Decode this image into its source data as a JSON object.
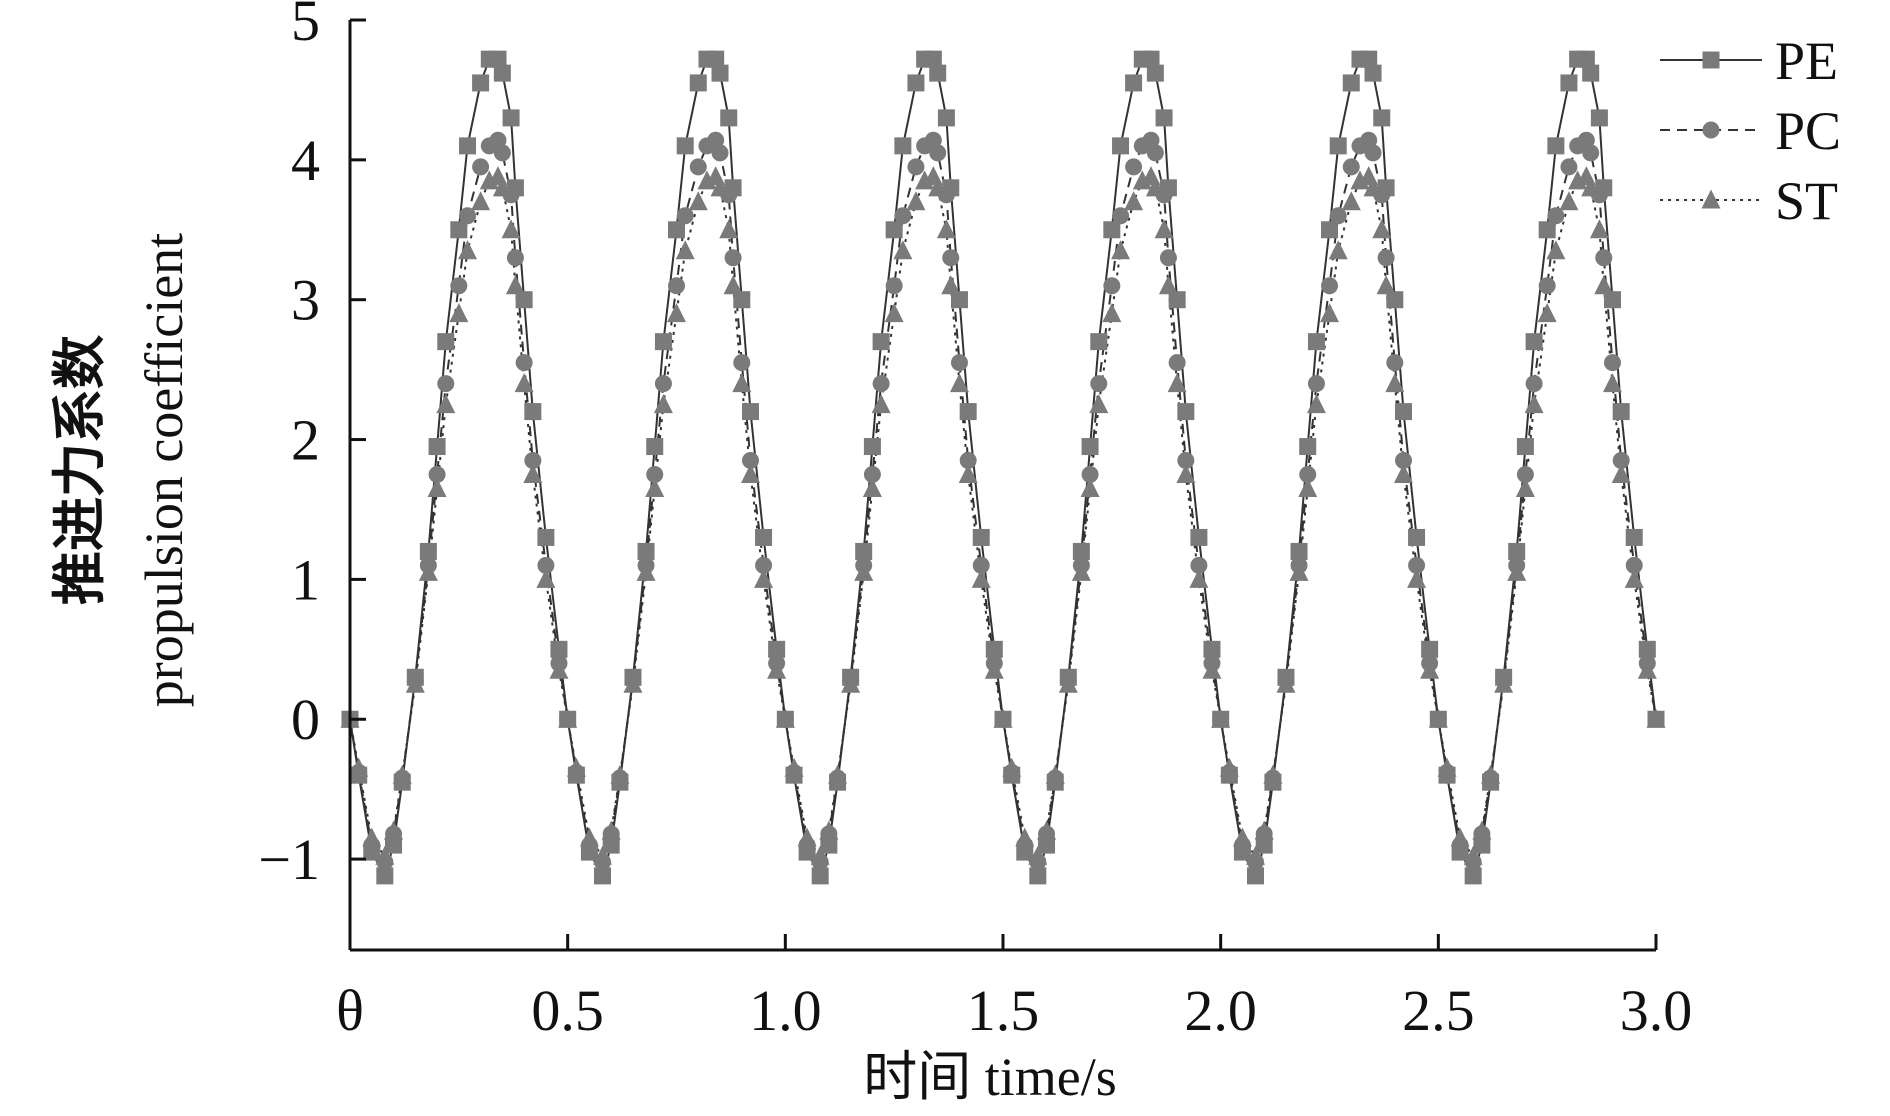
{
  "chart_data": {
    "type": "line",
    "title": "",
    "xlabel": "时间 time/s",
    "ylabel_line1": "推进力系数",
    "ylabel_line2": "propulsion coefficient",
    "xlim": [
      0,
      3.0
    ],
    "ylim": [
      -1.65,
      5
    ],
    "x_ticks": [
      0,
      0.5,
      1.0,
      1.5,
      2.0,
      2.5,
      3.0
    ],
    "x_tick_labels": [
      "θ",
      "0.5",
      "1.0",
      "1.5",
      "2.0",
      "2.5",
      "3.0"
    ],
    "y_ticks": [
      -1,
      0,
      1,
      2,
      3,
      4,
      5
    ],
    "y_tick_labels": [
      "−1",
      "0",
      "1",
      "2",
      "3",
      "4",
      "5"
    ],
    "grid": false,
    "legend_position": "top-right",
    "period": 0.5,
    "series": [
      {
        "name": "PE",
        "line_style": "solid",
        "marker": "square",
        "color": "#7a7a7a",
        "cycle_x": [
          0.0,
          0.02,
          0.05,
          0.08,
          0.1,
          0.12,
          0.15,
          0.18,
          0.2,
          0.22,
          0.25,
          0.27,
          0.3,
          0.32,
          0.34,
          0.35,
          0.37,
          0.38,
          0.4,
          0.42,
          0.45,
          0.48,
          0.5
        ],
        "cycle_y": [
          0.0,
          -0.4,
          -0.95,
          -1.12,
          -0.9,
          -0.45,
          0.3,
          1.2,
          1.95,
          2.7,
          3.5,
          4.1,
          4.55,
          4.72,
          4.72,
          4.62,
          4.3,
          3.8,
          3.0,
          2.2,
          1.3,
          0.5,
          0.0
        ]
      },
      {
        "name": "PC",
        "line_style": "dashed",
        "marker": "circle",
        "color": "#7a7a7a",
        "cycle_x": [
          0.0,
          0.02,
          0.05,
          0.08,
          0.1,
          0.12,
          0.15,
          0.18,
          0.2,
          0.22,
          0.25,
          0.27,
          0.3,
          0.32,
          0.34,
          0.35,
          0.37,
          0.38,
          0.4,
          0.42,
          0.45,
          0.48,
          0.5
        ],
        "cycle_y": [
          0.0,
          -0.38,
          -0.9,
          -1.02,
          -0.82,
          -0.42,
          0.28,
          1.1,
          1.75,
          2.4,
          3.1,
          3.6,
          3.95,
          4.1,
          4.14,
          4.05,
          3.75,
          3.3,
          2.55,
          1.85,
          1.1,
          0.4,
          0.0
        ]
      },
      {
        "name": "ST",
        "line_style": "dotted",
        "marker": "triangle",
        "color": "#7a7a7a",
        "cycle_x": [
          0.0,
          0.02,
          0.05,
          0.08,
          0.1,
          0.12,
          0.15,
          0.18,
          0.2,
          0.22,
          0.25,
          0.27,
          0.3,
          0.32,
          0.34,
          0.35,
          0.37,
          0.38,
          0.4,
          0.42,
          0.45,
          0.48,
          0.5
        ],
        "cycle_y": [
          0.0,
          -0.35,
          -0.85,
          -0.98,
          -0.8,
          -0.4,
          0.25,
          1.05,
          1.65,
          2.25,
          2.9,
          3.35,
          3.7,
          3.85,
          3.88,
          3.8,
          3.5,
          3.1,
          2.4,
          1.75,
          1.0,
          0.35,
          0.0
        ]
      }
    ]
  }
}
